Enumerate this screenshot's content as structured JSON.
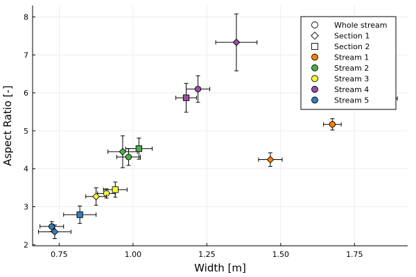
{
  "chart_data": {
    "type": "scatter",
    "title": "",
    "xlabel": "Width [m]",
    "ylabel": "Aspect Ratio [-]",
    "xlim": [
      0.66,
      1.93
    ],
    "ylim": [
      1.97,
      8.3
    ],
    "xticks": [
      0.75,
      1.0,
      1.25,
      1.5,
      1.75
    ],
    "xtick_labels": [
      "0.75",
      "1.00",
      "1.25",
      "1.50",
      "1.75"
    ],
    "yticks": [
      2,
      3,
      4,
      5,
      6,
      7,
      8
    ],
    "ytick_labels": [
      "2",
      "3",
      "4",
      "5",
      "6",
      "7",
      "8"
    ],
    "grid": true,
    "legend_position": "top-right",
    "legend": [
      {
        "label": "Whole stream",
        "marker": "circle",
        "color": "#ffffff"
      },
      {
        "label": "Section 1",
        "marker": "diamond",
        "color": "#ffffff"
      },
      {
        "label": "Section 2",
        "marker": "square",
        "color": "#ffffff"
      },
      {
        "label": "Stream 1",
        "marker": "circle",
        "color": "#ff7f00"
      },
      {
        "label": "Stream 2",
        "marker": "circle",
        "color": "#4daf4a"
      },
      {
        "label": "Stream 3",
        "marker": "circle",
        "color": "#ffff33"
      },
      {
        "label": "Stream 4",
        "marker": "circle",
        "color": "#984ea3"
      },
      {
        "label": "Stream 5",
        "marker": "circle",
        "color": "#377eb8"
      }
    ],
    "series": [
      {
        "stream": "Stream 1",
        "color": "#ff7f00",
        "points": [
          {
            "shape": "circle",
            "x": 1.675,
            "y": 5.17,
            "xerr": 0.03,
            "yerr": 0.15
          },
          {
            "shape": "diamond",
            "x": 1.465,
            "y": 4.24,
            "xerr": 0.04,
            "yerr": 0.18
          },
          {
            "shape": "square",
            "x": 1.855,
            "y": 5.85,
            "xerr": 0.04,
            "yerr": 0.22
          }
        ]
      },
      {
        "stream": "Stream 2",
        "color": "#4daf4a",
        "points": [
          {
            "shape": "circle",
            "x": 0.985,
            "y": 4.31,
            "xerr": 0.04,
            "yerr": 0.22
          },
          {
            "shape": "diamond",
            "x": 0.965,
            "y": 4.45,
            "xerr": 0.05,
            "yerr": 0.42
          },
          {
            "shape": "square",
            "x": 1.02,
            "y": 4.53,
            "xerr": 0.045,
            "yerr": 0.28
          }
        ]
      },
      {
        "stream": "Stream 3",
        "color": "#ffff33",
        "points": [
          {
            "shape": "circle",
            "x": 0.91,
            "y": 3.35,
            "xerr": 0.03,
            "yerr": 0.12
          },
          {
            "shape": "diamond",
            "x": 0.875,
            "y": 3.27,
            "xerr": 0.035,
            "yerr": 0.23
          },
          {
            "shape": "square",
            "x": 0.94,
            "y": 3.45,
            "xerr": 0.04,
            "yerr": 0.2
          }
        ]
      },
      {
        "stream": "Stream 4",
        "color": "#984ea3",
        "points": [
          {
            "shape": "circle",
            "x": 1.22,
            "y": 6.1,
            "xerr": 0.04,
            "yerr": 0.35
          },
          {
            "shape": "diamond",
            "x": 1.35,
            "y": 7.33,
            "xerr": 0.07,
            "yerr": 0.75
          },
          {
            "shape": "square",
            "x": 1.18,
            "y": 5.87,
            "xerr": 0.035,
            "yerr": 0.38
          }
        ]
      },
      {
        "stream": "Stream 5",
        "color": "#377eb8",
        "points": [
          {
            "shape": "circle",
            "x": 0.725,
            "y": 2.48,
            "xerr": 0.04,
            "yerr": 0.13
          },
          {
            "shape": "diamond",
            "x": 0.735,
            "y": 2.34,
            "xerr": 0.055,
            "yerr": 0.18
          },
          {
            "shape": "square",
            "x": 0.82,
            "y": 2.79,
            "xerr": 0.055,
            "yerr": 0.23
          }
        ]
      }
    ]
  }
}
